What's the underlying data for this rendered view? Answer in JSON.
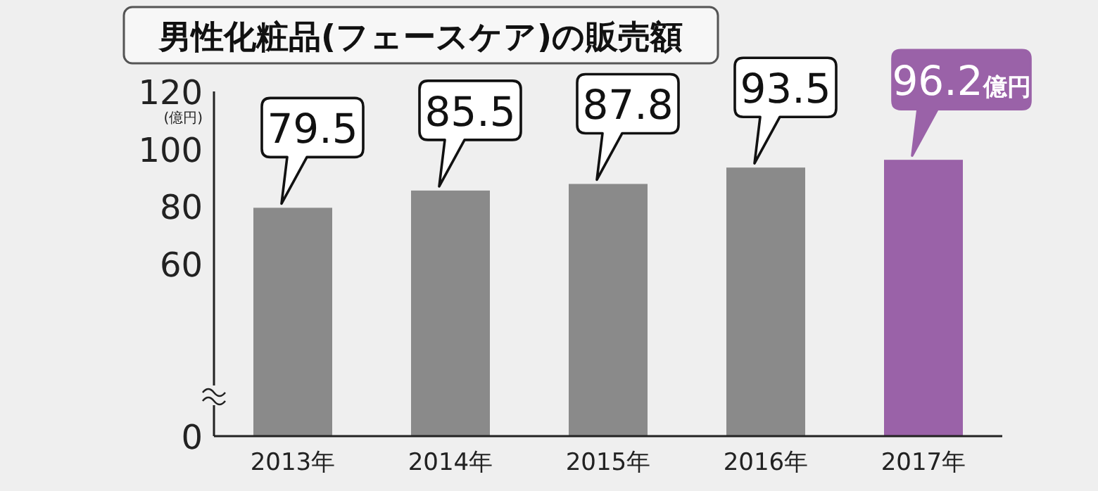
{
  "chart_data": {
    "type": "bar",
    "title": "男性化粧品(フェースケア)の販売額",
    "ylabel": "(億円)",
    "categories": [
      "2013年",
      "2014年",
      "2015年",
      "2016年",
      "2017年"
    ],
    "values": [
      79.5,
      85.5,
      87.8,
      93.5,
      96.2
    ],
    "colors": [
      "#8a8a8a",
      "#8a8a8a",
      "#8a8a8a",
      "#8a8a8a",
      "#9a62a8"
    ],
    "value_labels": [
      "79.5",
      "85.5",
      "87.8",
      "93.5",
      "96.2億円"
    ],
    "ylim": [
      0,
      120
    ],
    "yticks": [
      0,
      60,
      80,
      100,
      120
    ],
    "grid": false
  }
}
